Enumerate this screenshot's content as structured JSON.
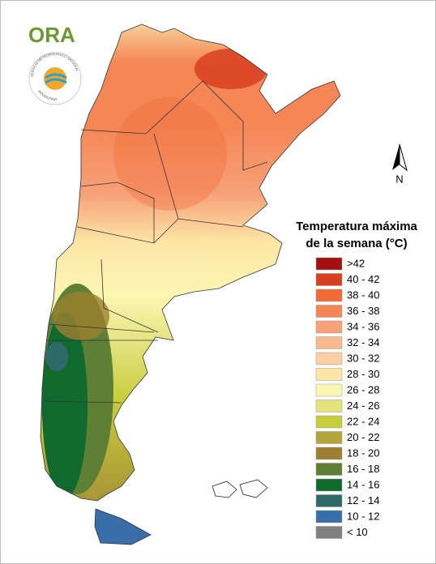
{
  "logo": {
    "brand": "ORA",
    "agency": "SERVICIO METEOROLOGICO NACIONAL",
    "country": "ARGENTINA"
  },
  "north_arrow": "N",
  "legend": {
    "title_lines": [
      "Temperatura máxima",
      "de la semana (°C)"
    ],
    "items": [
      {
        "label": ">42",
        "color": "#a50f0f"
      },
      {
        "label": "40 - 42",
        "color": "#d8401f"
      },
      {
        "label": "38 - 40",
        "color": "#f26b36"
      },
      {
        "label": "36 - 38",
        "color": "#f58656"
      },
      {
        "label": "34 - 36",
        "color": "#f7a179"
      },
      {
        "label": "32 - 34",
        "color": "#f9b98e"
      },
      {
        "label": "30 - 32",
        "color": "#fbcfa4"
      },
      {
        "label": "28 - 30",
        "color": "#fde5a6"
      },
      {
        "label": "26 - 28",
        "color": "#fbf6b2"
      },
      {
        "label": "24 - 26",
        "color": "#e3e27c"
      },
      {
        "label": "22 - 24",
        "color": "#c8cd3c"
      },
      {
        "label": "20 - 22",
        "color": "#b2a63a"
      },
      {
        "label": "18 - 20",
        "color": "#9c8030"
      },
      {
        "label": "16 - 18",
        "color": "#5d8034"
      },
      {
        "label": "14 - 16",
        "color": "#116a2d"
      },
      {
        "label": "12 - 14",
        "color": "#2f6a68"
      },
      {
        "label": "10 - 12",
        "color": "#3a6ea8"
      },
      {
        "label": "< 10",
        "color": "#808080"
      }
    ]
  }
}
